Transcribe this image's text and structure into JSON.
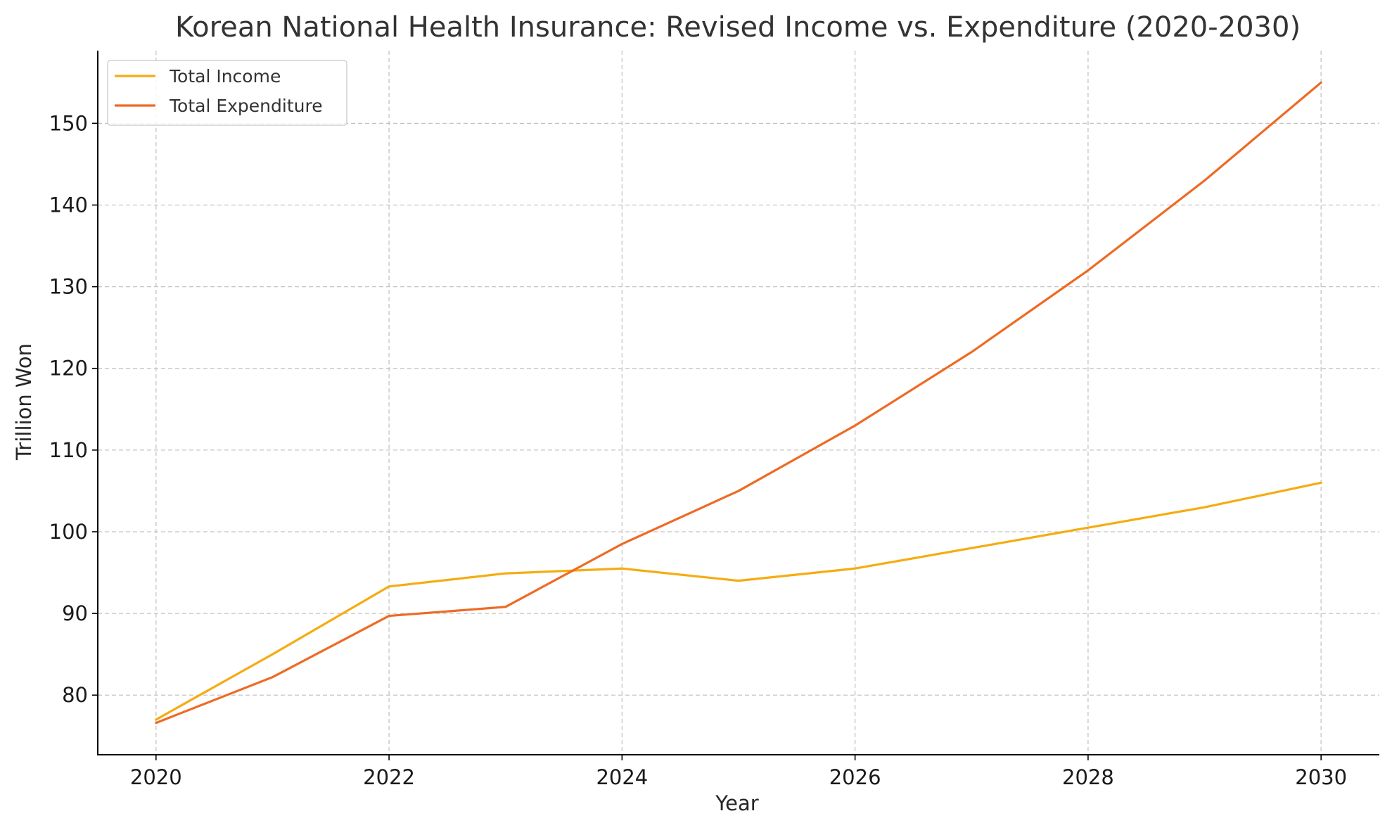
{
  "chart_data": {
    "type": "line",
    "title": "Korean National Health Insurance: Revised Income vs. Expenditure (2020-2030)",
    "xlabel": "Year",
    "ylabel": "Trillion Won",
    "x": [
      2020,
      2021,
      2022,
      2023,
      2024,
      2025,
      2026,
      2027,
      2028,
      2029,
      2030
    ],
    "xlim": [
      2019.5,
      2030.5
    ],
    "ylim": [
      72.7,
      158.9
    ],
    "xticks": [
      2020,
      2022,
      2024,
      2026,
      2028,
      2030
    ],
    "yticks": [
      80,
      90,
      100,
      110,
      120,
      130,
      140,
      150
    ],
    "grid": true,
    "legend_position": "top-left",
    "series": [
      {
        "name": "Total Income",
        "color": "#f5ac12",
        "values": [
          77.0,
          85.0,
          93.3,
          94.9,
          95.5,
          94.0,
          95.5,
          98.0,
          100.5,
          103.0,
          106.0
        ]
      },
      {
        "name": "Total Expenditure",
        "color": "#ee6a24",
        "values": [
          76.6,
          82.2,
          89.7,
          90.8,
          98.5,
          105.0,
          113.0,
          122.0,
          132.0,
          143.0,
          155.0
        ]
      }
    ]
  }
}
